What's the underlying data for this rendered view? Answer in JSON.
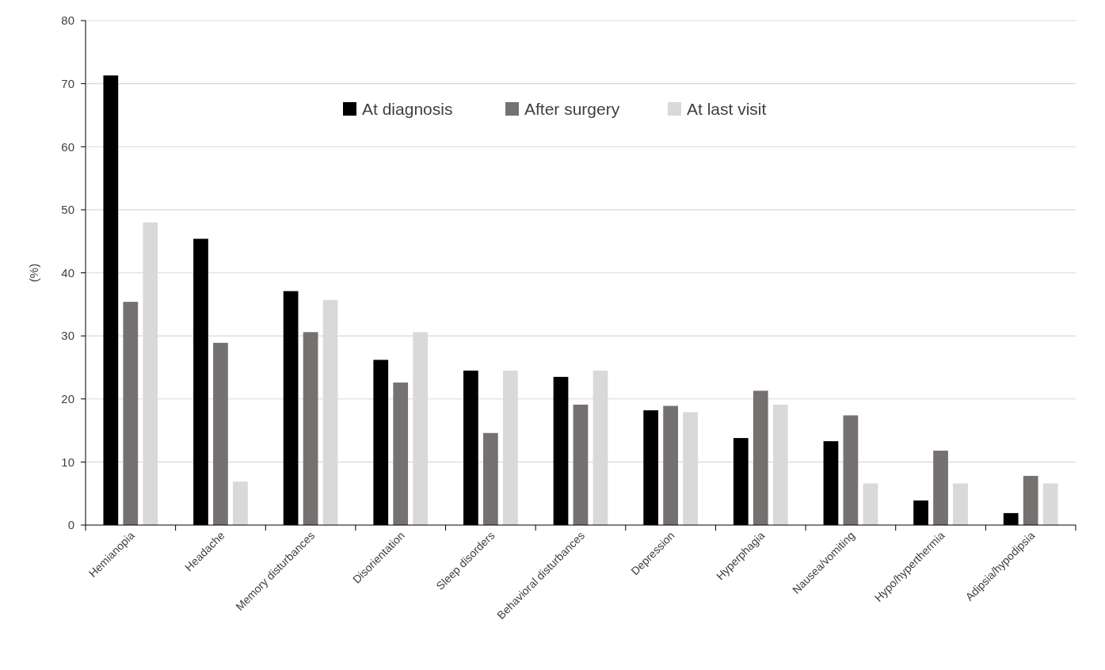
{
  "chart_data": {
    "type": "bar",
    "ylabel": "(%)",
    "categories": [
      "Hemianopia",
      "Headache",
      "Memory disturbances",
      "Disorientation",
      "Sleep disorders",
      "Behavioral disturbances",
      "Depression",
      "Hyperphagia",
      "Nausea/vomiting",
      "Hypo/hyperthermia",
      "Adipsia/hypodipsia"
    ],
    "series": [
      {
        "name": "At diagnosis",
        "color": "#000000",
        "values": [
          71.3,
          45.4,
          37.1,
          26.2,
          24.5,
          23.5,
          18.2,
          13.8,
          13.3,
          3.9,
          1.9
        ]
      },
      {
        "name": "After surgery",
        "color": "#767171",
        "values": [
          35.4,
          28.9,
          30.6,
          22.6,
          14.6,
          19.1,
          18.9,
          21.3,
          17.4,
          11.8,
          7.8
        ]
      },
      {
        "name": "At last visit",
        "color": "#d9d9d9",
        "values": [
          48.0,
          6.9,
          35.7,
          30.6,
          24.5,
          24.5,
          17.9,
          19.1,
          6.6,
          6.6,
          6.6
        ]
      }
    ],
    "ylim": [
      0,
      80
    ],
    "yticks": [
      0,
      10,
      20,
      30,
      40,
      50,
      60,
      70,
      80
    ],
    "grid": "y",
    "legend": "top"
  }
}
